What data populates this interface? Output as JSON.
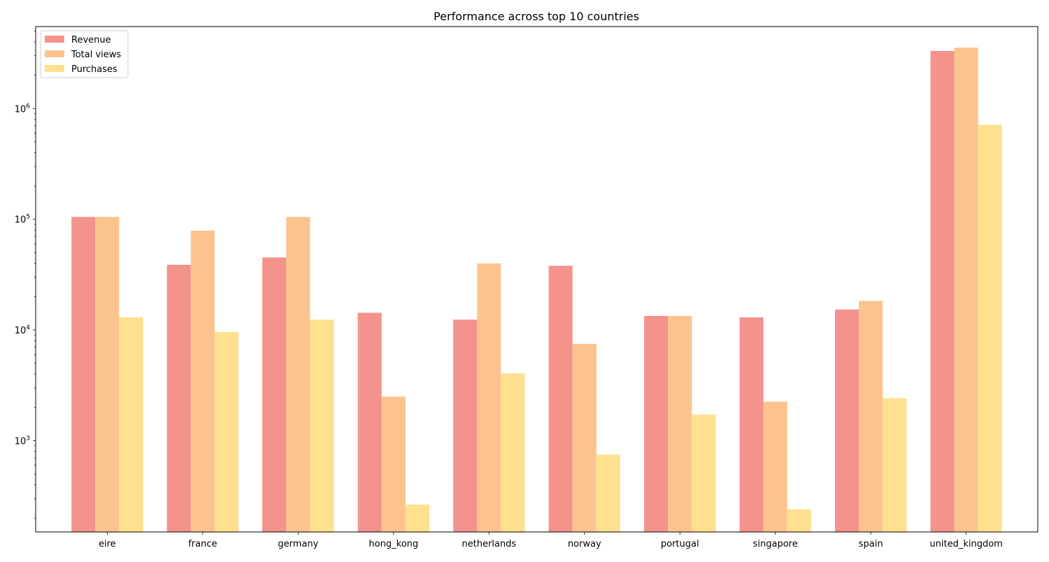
{
  "chart_data": {
    "type": "bar",
    "title": "Performance across top 10 countries",
    "xlabel": "",
    "ylabel": "",
    "y_scale": "log",
    "ylim": [
      150,
      5500000
    ],
    "grid": false,
    "legend_position": "top-left",
    "categories": [
      "eire",
      "france",
      "germany",
      "hong_kong",
      "netherlands",
      "norway",
      "portugal",
      "singapore",
      "spain",
      "united_kingdom"
    ],
    "y_ticks": [
      {
        "value": 1000,
        "base": "10",
        "exp": "3"
      },
      {
        "value": 10000,
        "base": "10",
        "exp": "4"
      },
      {
        "value": 100000,
        "base": "10",
        "exp": "5"
      },
      {
        "value": 1000000,
        "base": "10",
        "exp": "6"
      }
    ],
    "series": [
      {
        "name": "Revenue",
        "color": "#f4928c",
        "values": [
          105000,
          38800,
          45200,
          14300,
          12400,
          38000,
          13400,
          13000,
          15300,
          3310000
        ]
      },
      {
        "name": "Total views",
        "color": "#fbc48e",
        "values": [
          105000,
          79000,
          105000,
          2500,
          40000,
          7500,
          13400,
          2250,
          18300,
          3550000
        ]
      },
      {
        "name": "Purchases",
        "color": "#fee08f",
        "values": [
          13000,
          9600,
          12400,
          265,
          4050,
          750,
          1720,
          240,
          2420,
          715000
        ]
      }
    ]
  }
}
